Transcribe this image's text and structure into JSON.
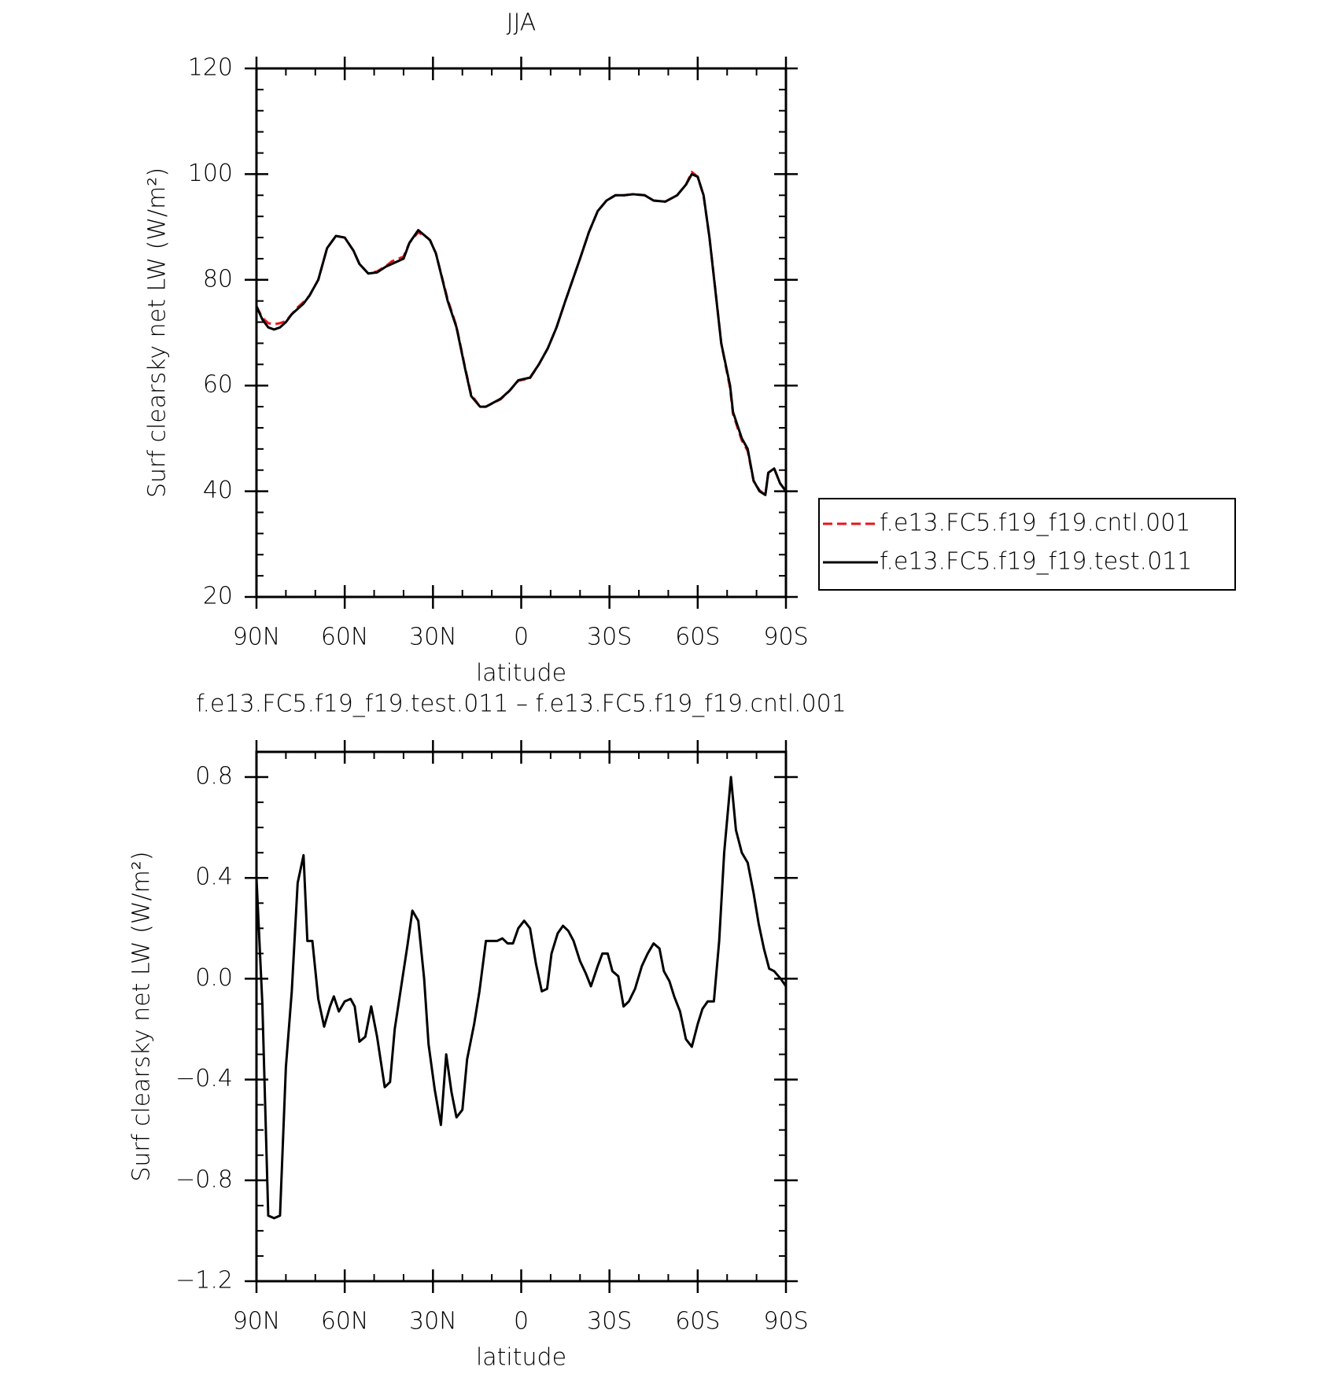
{
  "chart_data": [
    {
      "type": "line",
      "title": "JJA",
      "x_label": "latitude",
      "y_label": "Surf clearsky net LW (W/m²)",
      "xlim": [
        90,
        -90
      ],
      "xticks": [
        {
          "value": 90,
          "label": "90N"
        },
        {
          "value": 60,
          "label": "60N"
        },
        {
          "value": 30,
          "label": "30N"
        },
        0,
        {
          "value": -30,
          "label": "30S"
        },
        {
          "value": -60,
          "label": "60S"
        },
        {
          "value": -90,
          "label": "90S"
        }
      ],
      "ylim": [
        20,
        120
      ],
      "yticks": [
        20,
        40,
        60,
        80,
        100,
        120
      ],
      "legend": "outside right",
      "x": [
        90,
        88,
        86,
        84,
        82,
        80,
        78,
        76,
        74,
        72,
        69,
        66,
        63,
        60,
        57,
        55,
        52,
        49,
        46,
        44,
        40,
        38,
        35,
        32,
        31,
        29,
        25,
        22,
        19,
        17,
        14,
        12,
        7,
        4,
        1,
        -3,
        -6,
        -9,
        -12,
        -15,
        -20,
        -23,
        -26,
        -29,
        -32,
        -35,
        -38,
        -42,
        -45,
        -49,
        -53,
        -56,
        -58,
        -60,
        -62,
        -64,
        -66,
        -68,
        -71,
        -72,
        -75,
        -77,
        -79,
        -81,
        -83,
        -84,
        -86,
        -88,
        -90
      ],
      "series": [
        {
          "name": "f.e13.FC5.f19_f19.cntl.001",
          "color": "#e8141c",
          "dashed": true,
          "values": [
            75,
            72.8,
            71.8,
            71.6,
            71.8,
            72.2,
            73.5,
            74.8,
            75.8,
            77,
            80,
            86,
            88.3,
            88,
            85.5,
            83,
            81.2,
            81.6,
            82.6,
            83.5,
            84.4,
            87,
            89,
            88,
            87.5,
            85,
            76.3,
            71.2,
            63.2,
            58.3,
            56,
            56,
            57.4,
            59,
            60.9,
            61.4,
            64,
            67,
            71,
            76,
            84,
            89,
            93,
            95,
            96,
            96,
            96.2,
            96,
            95,
            94.8,
            96,
            98,
            100.4,
            99.5,
            95.9,
            88,
            78.2,
            68,
            59.5,
            54.6,
            49.6,
            47.6,
            41.9,
            40.2,
            39.3,
            43.5,
            44.3,
            41.5,
            40
          ]
        },
        {
          "name": "f.e13.FC5.f19_f19.test.011",
          "color": "#000000",
          "dashed": false,
          "values": [
            75,
            72.5,
            71,
            70.6,
            71,
            72,
            73.5,
            74.5,
            75.5,
            77,
            80,
            86,
            88.3,
            88,
            85.5,
            83,
            81.2,
            81.4,
            82.5,
            83,
            84,
            87,
            89.4,
            88,
            87.5,
            85,
            76,
            71,
            63,
            58,
            56,
            56,
            57.5,
            59,
            61,
            61.5,
            64,
            67,
            71,
            76,
            84,
            89,
            93,
            95,
            96,
            96,
            96.2,
            96,
            95,
            94.8,
            96,
            98,
            100,
            99.5,
            96,
            88,
            78,
            68,
            60,
            55,
            50,
            48,
            42,
            40,
            39.3,
            43.5,
            44.3,
            41.5,
            40
          ]
        }
      ]
    },
    {
      "type": "line",
      "title": "f.e13.FC5.f19_f19.test.011 – f.e13.FC5.f19_f19.cntl.001",
      "x_label": "latitude",
      "y_label": "Surf clearsky net LW (W/m²)",
      "xlim": [
        90,
        -90
      ],
      "xticks": [
        {
          "value": 90,
          "label": "90N"
        },
        {
          "value": 60,
          "label": "60N"
        },
        {
          "value": 30,
          "label": "30N"
        },
        0,
        {
          "value": -30,
          "label": "30S"
        },
        {
          "value": -60,
          "label": "60S"
        },
        {
          "value": -90,
          "label": "90S"
        }
      ],
      "ylim": [
        -1.2,
        0.9
      ],
      "yticks": [
        {
          "value": -1.2,
          "label": "−1.2"
        },
        {
          "value": -0.8,
          "label": "−0.8"
        },
        {
          "value": -0.4,
          "label": "−0.4"
        },
        {
          "value": 0,
          "label": "0.0"
        },
        0.4,
        0.8
      ],
      "x": [
        90,
        88,
        86,
        84,
        82,
        80,
        78,
        76,
        74,
        72.7,
        71,
        69,
        67,
        65,
        63.7,
        62,
        60,
        58,
        56.6,
        55,
        53,
        51,
        49,
        46.4,
        44.6,
        43,
        40.4,
        38.7,
        37,
        35,
        33,
        31.5,
        29.4,
        27.3,
        25.5,
        23.7,
        22,
        20,
        18.4,
        16,
        14.2,
        12,
        10,
        8.2,
        6.4,
        4.6,
        2.8,
        1,
        -1,
        -3,
        -5,
        -7,
        -8.8,
        -10.3,
        -12.4,
        -14.2,
        -16,
        -17.8,
        -20,
        -22,
        -23.7,
        -26,
        -27.6,
        -29.4,
        -31,
        -33,
        -34.8,
        -36.6,
        -38.7,
        -41,
        -43,
        -45,
        -47,
        -48.5,
        -50.4,
        -52,
        -54,
        -56,
        -58,
        -60,
        -61.6,
        -63.4,
        -65.5,
        -67.3,
        -69,
        -71.3,
        -73,
        -75,
        -77,
        -79,
        -80.7,
        -82.5,
        -84.3,
        -86,
        -88.2,
        -90
      ],
      "series": [
        {
          "name": null,
          "color": "#000000",
          "dashed": false,
          "values": [
            0.4,
            -0.1,
            -0.94,
            -0.95,
            -0.94,
            -0.35,
            -0.05,
            0.38,
            0.49,
            0.15,
            0.15,
            -0.08,
            -0.19,
            -0.11,
            -0.07,
            -0.13,
            -0.09,
            -0.08,
            -0.11,
            -0.25,
            -0.23,
            -0.11,
            -0.23,
            -0.43,
            -0.41,
            -0.2,
            0,
            0.13,
            0.27,
            0.23,
            0,
            -0.26,
            -0.44,
            -0.58,
            -0.3,
            -0.45,
            -0.55,
            -0.52,
            -0.32,
            -0.18,
            -0.05,
            0.15,
            0.15,
            0.15,
            0.16,
            0.14,
            0.14,
            0.2,
            0.23,
            0.2,
            0.06,
            -0.05,
            -0.04,
            0.1,
            0.18,
            0.21,
            0.19,
            0.15,
            0.07,
            0.02,
            -0.03,
            0.05,
            0.1,
            0.1,
            0.03,
            0.01,
            -0.11,
            -0.09,
            -0.04,
            0.05,
            0.1,
            0.14,
            0.12,
            0.03,
            -0.01,
            -0.07,
            -0.13,
            -0.24,
            -0.27,
            -0.18,
            -0.12,
            -0.09,
            -0.09,
            0.15,
            0.5,
            0.8,
            0.59,
            0.5,
            0.46,
            0.34,
            0.22,
            0.12,
            0.04,
            0.03,
            0,
            -0.03
          ]
        }
      ]
    }
  ]
}
